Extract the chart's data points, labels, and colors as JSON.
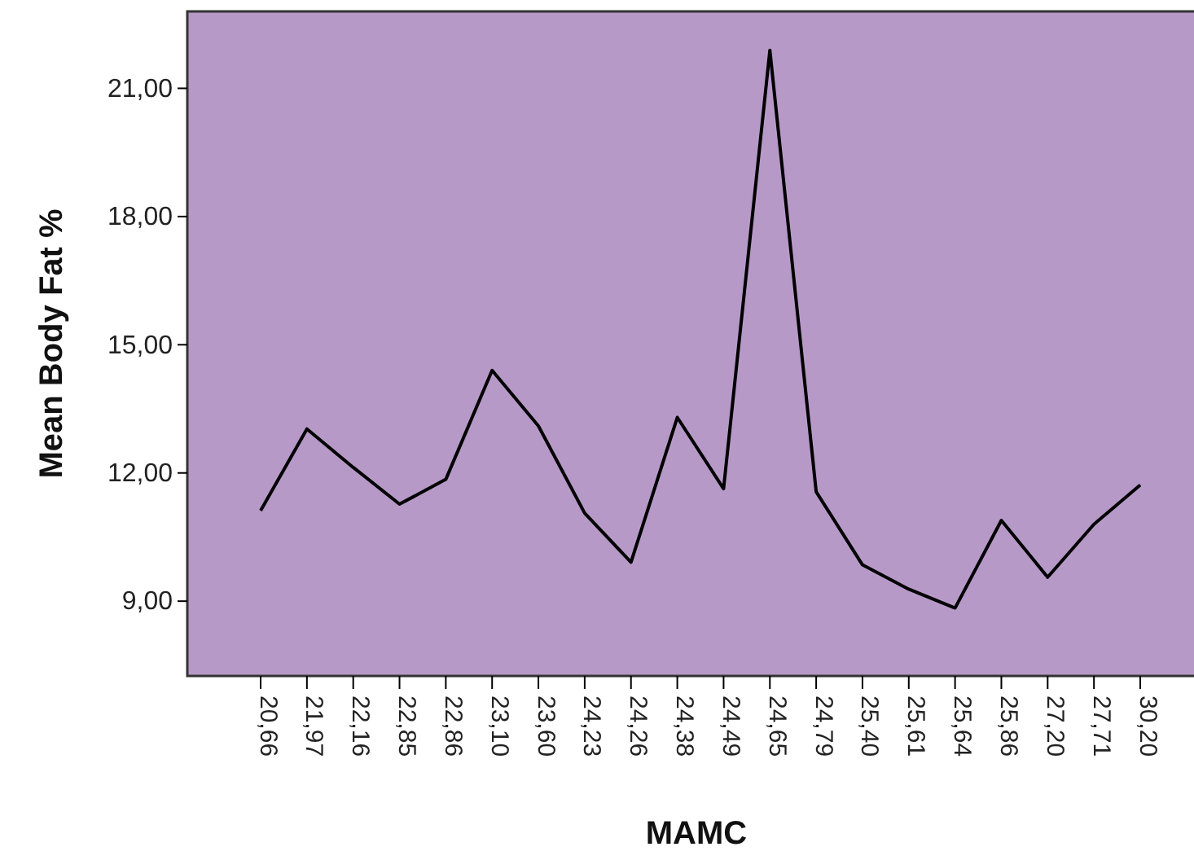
{
  "chart_data": {
    "type": "line",
    "xlabel": "MAMC",
    "ylabel": "Mean Body Fat %",
    "categories": [
      "20,66",
      "21,97",
      "22,16",
      "22,85",
      "22,86",
      "23,10",
      "23,60",
      "24,23",
      "24,26",
      "24,38",
      "24,49",
      "24,65",
      "24,79",
      "25,40",
      "25,61",
      "25,64",
      "25,86",
      "27,20",
      "27,71",
      "30,20"
    ],
    "series": [
      {
        "color": "#000000",
        "values": [
          11.12,
          13.03,
          12.13,
          11.27,
          11.85,
          14.4,
          13.1,
          11.06,
          9.91,
          13.3,
          11.63,
          21.89,
          11.56,
          9.85,
          9.28,
          8.84,
          10.89,
          9.56,
          10.8,
          11.72
        ]
      }
    ],
    "ylim": [
      7.25,
      22.8
    ],
    "yticks": [
      {
        "value": 9,
        "label": "9,00"
      },
      {
        "value": 12,
        "label": "12,00"
      },
      {
        "value": 15,
        "label": "15,00"
      },
      {
        "value": 18,
        "label": "18,00"
      },
      {
        "value": 21,
        "label": "21,00"
      }
    ],
    "marker": "none",
    "line_style": "solid"
  }
}
